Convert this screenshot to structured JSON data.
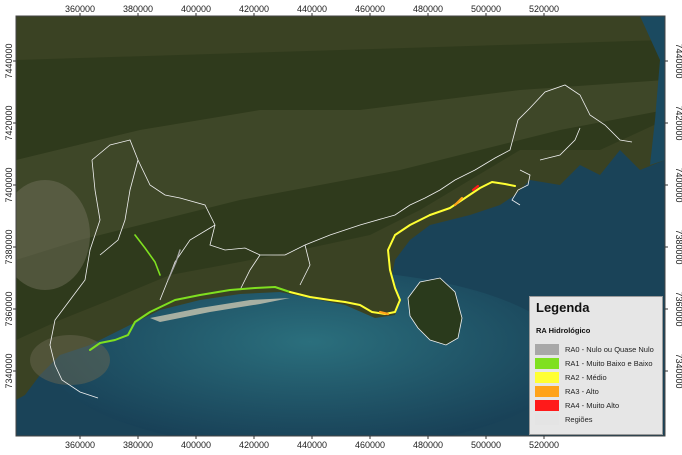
{
  "axes": {
    "x_ticks": [
      "360000",
      "380000",
      "400000",
      "420000",
      "440000",
      "460000",
      "480000",
      "500000",
      "520000"
    ],
    "y_ticks": [
      "7440000",
      "7420000",
      "7400000",
      "7380000",
      "7360000",
      "7340000"
    ]
  },
  "legend": {
    "title": "Legenda",
    "subtitle": "RA Hidrológico",
    "items": [
      {
        "label": "RA0 - Nulo ou Quase Nulo",
        "color": "#a8a8a8"
      },
      {
        "label": "RA1 - Muito Baixo e Baixo",
        "color": "#7fe020"
      },
      {
        "label": "RA2 - Médio",
        "color": "#ffff33"
      },
      {
        "label": "RA3 - Alto",
        "color": "#ffa31a"
      },
      {
        "label": "RA4 - Muito Alto",
        "color": "#ff1a1a"
      },
      {
        "label": "Regiões",
        "color": "#e4e4e4"
      }
    ]
  },
  "map_colors": {
    "land": "#3c4424",
    "sea": "#1b4a60",
    "boundary": "#f2f2f2"
  }
}
